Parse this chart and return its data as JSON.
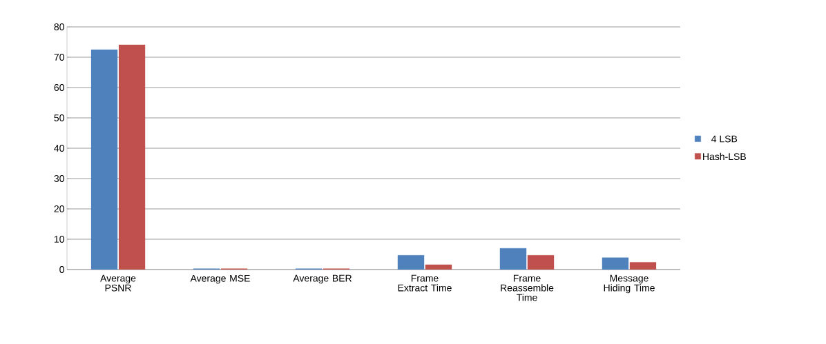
{
  "chart_data": {
    "type": "bar",
    "categories": [
      "Average PSNR",
      "Average MSE",
      "Average BER",
      "Frame Extract Time",
      "Frame Reassemble Time",
      "Message Hiding Time"
    ],
    "series": [
      {
        "name": "4 LSB",
        "color": "#4f81bd",
        "values": [
          72.5,
          0.3,
          0.3,
          4.7,
          7.0,
          3.9
        ]
      },
      {
        "name": "Hash-LSB",
        "color": "#c0504d",
        "values": [
          74.1,
          0.3,
          0.3,
          1.6,
          4.7,
          2.4
        ]
      }
    ],
    "ylim": [
      0,
      80
    ],
    "yticks": [
      0,
      10,
      20,
      30,
      40,
      50,
      60,
      70,
      80
    ],
    "grid": "y",
    "legend": "right"
  }
}
